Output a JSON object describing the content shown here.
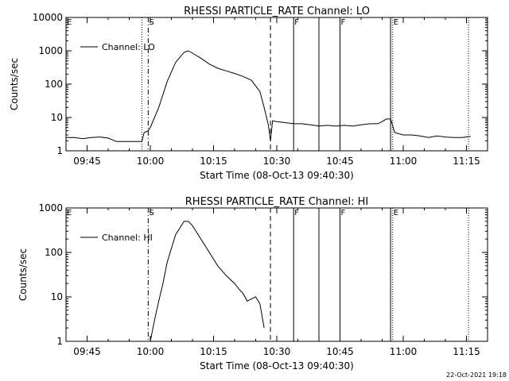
{
  "footer": {
    "timestamp": "22-Oct-2021 19:18"
  },
  "chart_data": [
    {
      "type": "line",
      "title": "RHESSI PARTICLE_RATE Channel: LO",
      "xlabel": "Start Time (08-Oct-13 09:40:30)",
      "ylabel": "Counts/sec",
      "yscale": "log",
      "ylim": [
        1,
        10000
      ],
      "xlim": [
        "09:40",
        "11:20"
      ],
      "y_tick_labels": [
        "1",
        "10",
        "100",
        "1000",
        "10000"
      ],
      "x_tick_labels": [
        "09:45",
        "10:00",
        "10:15",
        "10:30",
        "10:45",
        "11:00",
        "11:15"
      ],
      "grid": false,
      "legend": {
        "position": "top-left",
        "entries": [
          "Channel: LO"
        ]
      },
      "markers": [
        {
          "label": "E",
          "time": "09:40",
          "style": "none"
        },
        {
          "label": "S",
          "time": "09:59.5",
          "style": "dash-dot"
        },
        {
          "label": "",
          "time": "09:58",
          "style": "dotted"
        },
        {
          "label": "",
          "time": "10:28.5",
          "style": "dashed"
        },
        {
          "label": "F",
          "time": "10:34",
          "style": "solid"
        },
        {
          "label": "",
          "time": "10:40",
          "style": "solid"
        },
        {
          "label": "F",
          "time": "10:45",
          "style": "solid"
        },
        {
          "label": "",
          "time": "10:57",
          "style": "solid"
        },
        {
          "label": "E",
          "time": "10:57.5",
          "style": "dotted"
        },
        {
          "label": "",
          "time": "11:15.5",
          "style": "dotted"
        }
      ],
      "series": [
        {
          "name": "Channel: LO",
          "x": [
            "09:40",
            "09:42",
            "09:44",
            "09:46",
            "09:48",
            "09:50",
            "09:52",
            "09:54",
            "09:56",
            "09:58",
            "09:58.5",
            "09:59.5",
            "10:00",
            "10:02",
            "10:04",
            "10:06",
            "10:08",
            "10:09",
            "10:10",
            "10:12",
            "10:14",
            "10:16",
            "10:18",
            "10:20",
            "10:22",
            "10:24",
            "10:26",
            "10:27",
            "10:28",
            "10:28.5",
            "10:29",
            "10:30",
            "10:32",
            "10:34",
            "10:36",
            "10:38",
            "10:40",
            "10:42",
            "10:44",
            "10:46",
            "10:48",
            "10:50",
            "10:52",
            "10:54",
            "10:55",
            "10:56",
            "10:57",
            "10:58",
            "11:00",
            "11:02",
            "11:04",
            "11:06",
            "11:08",
            "11:10",
            "11:12",
            "11:14",
            "11:16"
          ],
          "values": [
            2.5,
            2.5,
            2.3,
            2.5,
            2.6,
            2.4,
            1.9,
            1.9,
            1.9,
            1.9,
            3.5,
            4,
            5,
            20,
            120,
            450,
            900,
            1000,
            850,
            600,
            400,
            300,
            250,
            210,
            170,
            130,
            60,
            20,
            6,
            2,
            8,
            7.5,
            7,
            6.5,
            6.5,
            6,
            5.5,
            5.8,
            5.5,
            5.8,
            5.5,
            6,
            6.5,
            6.5,
            7.5,
            9,
            9,
            3.5,
            3,
            3,
            2.8,
            2.5,
            2.8,
            2.6,
            2.5,
            2.5,
            2.7
          ]
        }
      ]
    },
    {
      "type": "line",
      "title": "RHESSI PARTICLE_RATE Channel: HI",
      "xlabel": "Start Time (08-Oct-13 09:40:30)",
      "ylabel": "Counts/sec",
      "yscale": "log",
      "ylim": [
        1,
        1000
      ],
      "xlim": [
        "09:40",
        "11:20"
      ],
      "y_tick_labels": [
        "1",
        "10",
        "100",
        "1000"
      ],
      "x_tick_labels": [
        "09:45",
        "10:00",
        "10:15",
        "10:30",
        "10:45",
        "11:00",
        "11:15"
      ],
      "grid": false,
      "legend": {
        "position": "top-left",
        "entries": [
          "Channel: HI"
        ]
      },
      "markers": [
        {
          "label": "E",
          "time": "09:40",
          "style": "none"
        },
        {
          "label": "S",
          "time": "09:59.5",
          "style": "dash-dot"
        },
        {
          "label": "",
          "time": "10:28.5",
          "style": "dashed"
        },
        {
          "label": "F",
          "time": "10:34",
          "style": "solid"
        },
        {
          "label": "",
          "time": "10:40",
          "style": "solid"
        },
        {
          "label": "F",
          "time": "10:45",
          "style": "solid"
        },
        {
          "label": "",
          "time": "10:57",
          "style": "solid"
        },
        {
          "label": "E",
          "time": "10:57.5",
          "style": "dotted"
        },
        {
          "label": "",
          "time": "11:15.5",
          "style": "dotted"
        }
      ],
      "series": [
        {
          "name": "Channel: HI",
          "x": [
            "10:00",
            "10:01",
            "10:02",
            "10:03",
            "10:04",
            "10:06",
            "10:08",
            "10:09",
            "10:10",
            "10:12",
            "10:14",
            "10:16",
            "10:18",
            "10:20",
            "10:21",
            "10:22",
            "10:23",
            "10:24",
            "10:25",
            "10:26",
            "10:27"
          ],
          "values": [
            1,
            3,
            8,
            20,
            60,
            250,
            500,
            500,
            400,
            200,
            100,
            50,
            30,
            20,
            15,
            12,
            8,
            9,
            10,
            7,
            2
          ]
        }
      ]
    }
  ]
}
